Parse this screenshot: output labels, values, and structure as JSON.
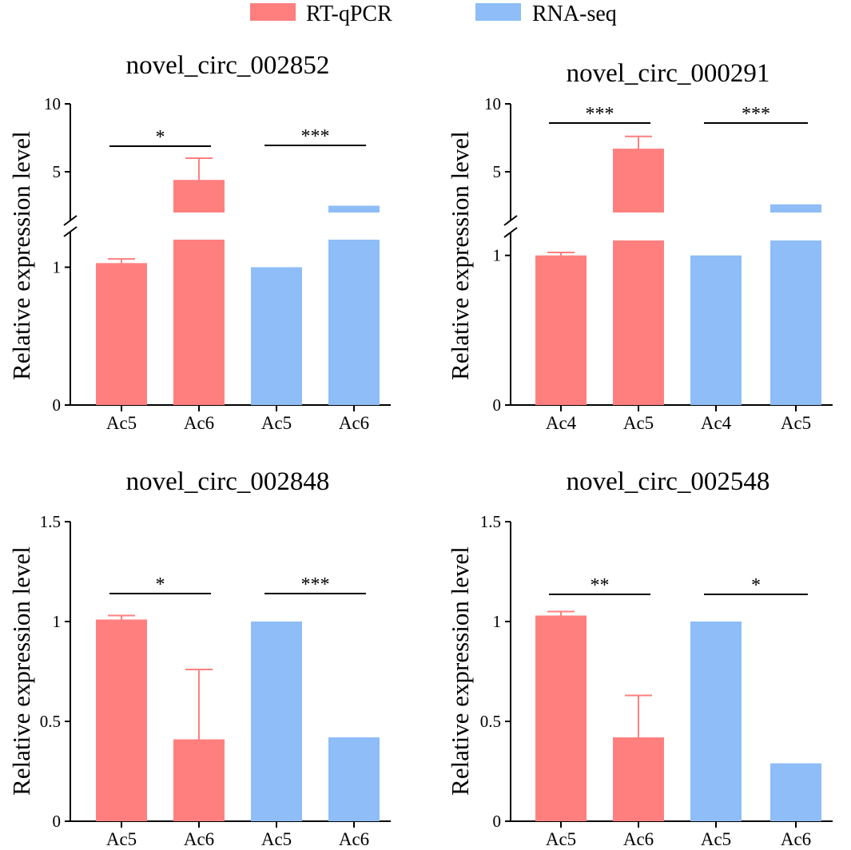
{
  "legend": {
    "items": [
      {
        "label": "RT-qPCR",
        "color": "#ff7f7f"
      },
      {
        "label": "RNA-seq",
        "color": "#8ebdf7"
      }
    ]
  },
  "colors": {
    "rt_qpcr": "#ff7f7f",
    "rna_seq": "#8ebdf7",
    "error_bar": "#ff7f7f",
    "axis": "#000000"
  },
  "chart_data": [
    {
      "type": "bar",
      "title": "novel_circ_002852",
      "ylabel": "Relative expression level",
      "xlabel": "",
      "categories": [
        "Ac5",
        "Ac6",
        "Ac5",
        "Ac6"
      ],
      "bar_series": [
        "RT-qPCR",
        "RT-qPCR",
        "RNA-seq",
        "RNA-seq"
      ],
      "values": [
        1.03,
        4.4,
        1.0,
        2.5
      ],
      "errors": [
        0.03,
        1.6,
        null,
        null
      ],
      "broken_axis": true,
      "lower_range": [
        0,
        1.2
      ],
      "upper_range": [
        2.0,
        10
      ],
      "yticks_lower": [
        "0",
        "1"
      ],
      "yticks_upper": [
        "5",
        "10"
      ],
      "significance": [
        {
          "from": 0,
          "to": 1,
          "label": "*"
        },
        {
          "from": 2,
          "to": 3,
          "label": "***"
        }
      ]
    },
    {
      "type": "bar",
      "title": "novel_circ_000291",
      "ylabel": "Relative expression level",
      "xlabel": "",
      "categories": [
        "Ac4",
        "Ac5",
        "Ac4",
        "Ac5"
      ],
      "bar_series": [
        "RT-qPCR",
        "RT-qPCR",
        "RNA-seq",
        "RNA-seq"
      ],
      "values": [
        1.0,
        6.7,
        1.0,
        2.6
      ],
      "errors": [
        0.02,
        0.9,
        null,
        null
      ],
      "broken_axis": true,
      "lower_range": [
        0,
        1.1
      ],
      "upper_range": [
        2.0,
        10
      ],
      "yticks_lower": [
        "0",
        "1"
      ],
      "yticks_upper": [
        "5",
        "10"
      ],
      "significance": [
        {
          "from": 0,
          "to": 1,
          "label": "***"
        },
        {
          "from": 2,
          "to": 3,
          "label": "***"
        }
      ]
    },
    {
      "type": "bar",
      "title": "novel_circ_002848",
      "ylabel": "Relative expression level",
      "xlabel": "",
      "categories": [
        "Ac5",
        "Ac6",
        "Ac5",
        "Ac6"
      ],
      "bar_series": [
        "RT-qPCR",
        "RT-qPCR",
        "RNA-seq",
        "RNA-seq"
      ],
      "values": [
        1.01,
        0.41,
        1.0,
        0.42
      ],
      "errors": [
        0.02,
        0.35,
        null,
        null
      ],
      "broken_axis": false,
      "ylim": [
        0,
        1.5
      ],
      "yticks": [
        "0",
        "0.5",
        "1",
        "1.5"
      ],
      "significance": [
        {
          "from": 0,
          "to": 1,
          "label": "*"
        },
        {
          "from": 2,
          "to": 3,
          "label": "***"
        }
      ]
    },
    {
      "type": "bar",
      "title": "novel_circ_002548",
      "ylabel": "Relative expression level",
      "xlabel": "",
      "categories": [
        "Ac5",
        "Ac6",
        "Ac5",
        "Ac6"
      ],
      "bar_series": [
        "RT-qPCR",
        "RT-qPCR",
        "RNA-seq",
        "RNA-seq"
      ],
      "values": [
        1.03,
        0.42,
        1.0,
        0.29
      ],
      "errors": [
        0.02,
        0.21,
        null,
        null
      ],
      "broken_axis": false,
      "ylim": [
        0,
        1.5
      ],
      "yticks": [
        "0",
        "0.5",
        "1",
        "1.5"
      ],
      "significance": [
        {
          "from": 0,
          "to": 1,
          "label": "**"
        },
        {
          "from": 2,
          "to": 3,
          "label": "*"
        }
      ]
    }
  ]
}
